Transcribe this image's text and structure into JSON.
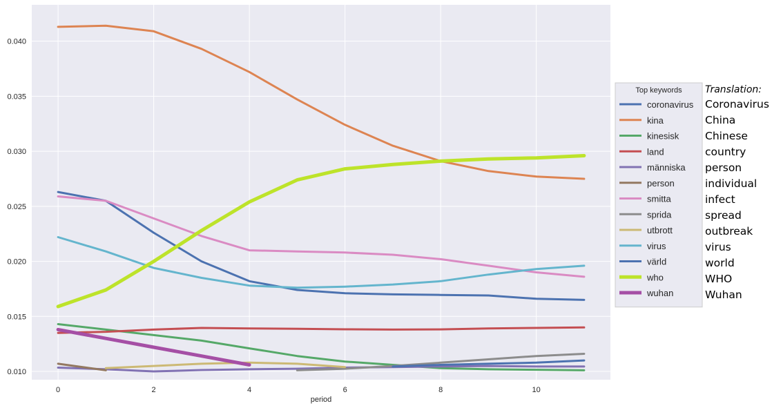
{
  "translation": {
    "title": "Translation:",
    "items": [
      "Coronavirus",
      "China",
      "Chinese",
      "country",
      "person",
      "individual",
      "infect",
      "spread",
      "outbreak",
      "virus",
      "world",
      "WHO",
      "Wuhan"
    ]
  },
  "chart_data": {
    "type": "line",
    "title": "",
    "xlabel": "period",
    "ylabel": "",
    "xlim": [
      -0.55,
      11.55
    ],
    "ylim": [
      0.00925,
      0.0433
    ],
    "xticks": [
      0,
      2,
      4,
      6,
      8,
      10
    ],
    "xtick_labels": [
      "0",
      "2",
      "4",
      "6",
      "8",
      "10"
    ],
    "yticks": [
      0.01,
      0.015,
      0.02,
      0.025,
      0.03,
      0.035,
      0.04
    ],
    "ytick_labels": [
      "0.010",
      "0.015",
      "0.020",
      "0.025",
      "0.030",
      "0.035",
      "0.040"
    ],
    "grid": true,
    "background": "#eaeaf2",
    "legend": {
      "title": "Top keywords",
      "placement": "outside-right"
    },
    "series": [
      {
        "name": "coronavirus",
        "color": "#4c72b0",
        "width": 3,
        "x": [
          0,
          1,
          2,
          3,
          4,
          5,
          6,
          7,
          8,
          9,
          10,
          11
        ],
        "y": [
          0.0263,
          0.0255,
          0.0226,
          0.02,
          0.0182,
          0.0174,
          0.0171,
          0.017,
          0.01695,
          0.0169,
          0.0166,
          0.0165
        ]
      },
      {
        "name": "kina",
        "color": "#dd8452",
        "width": 3,
        "x": [
          0,
          1,
          2,
          3,
          4,
          5,
          6,
          7,
          8,
          9,
          10,
          11
        ],
        "y": [
          0.0413,
          0.0414,
          0.0409,
          0.0393,
          0.0372,
          0.0347,
          0.0324,
          0.0305,
          0.0291,
          0.0282,
          0.0277,
          0.0275
        ]
      },
      {
        "name": "kinesisk",
        "color": "#55a868",
        "width": 3,
        "x": [
          0,
          1,
          2,
          3,
          4,
          5,
          6,
          7,
          8,
          9,
          10,
          11
        ],
        "y": [
          0.0143,
          0.0138,
          0.0133,
          0.0128,
          0.0121,
          0.0114,
          0.0109,
          0.0106,
          0.0103,
          0.0102,
          0.01015,
          0.0101
        ]
      },
      {
        "name": "land",
        "color": "#c44e52",
        "width": 3,
        "x": [
          0,
          1,
          2,
          3,
          4,
          5,
          6,
          7,
          8,
          9,
          10,
          11
        ],
        "y": [
          0.0135,
          0.0136,
          0.0138,
          0.01395,
          0.0139,
          0.01388,
          0.01383,
          0.0138,
          0.01382,
          0.0139,
          0.01395,
          0.014
        ]
      },
      {
        "name": "människa",
        "color": "#8172b3",
        "width": 3,
        "x": [
          0,
          1,
          2,
          3,
          4,
          5,
          6,
          7,
          8,
          9,
          10,
          11
        ],
        "y": [
          0.01035,
          0.0102,
          0.01,
          0.01013,
          0.0102,
          0.01025,
          0.01035,
          0.0104,
          0.01045,
          0.0105,
          0.01045,
          0.01045
        ]
      },
      {
        "name": "person",
        "color": "#937860",
        "width": 3,
        "x": [
          0,
          1
        ],
        "y": [
          0.0107,
          0.0101
        ]
      },
      {
        "name": "smitta",
        "color": "#da8bc3",
        "width": 3,
        "x": [
          0,
          1,
          2,
          3,
          4,
          5,
          6,
          7,
          8,
          9,
          10,
          11
        ],
        "y": [
          0.0259,
          0.0255,
          0.0239,
          0.0223,
          0.021,
          0.0209,
          0.0208,
          0.0206,
          0.0202,
          0.0196,
          0.019,
          0.0186
        ]
      },
      {
        "name": "sprida",
        "color": "#8c8c8c",
        "width": 3,
        "x": [
          5,
          6,
          7,
          8,
          9,
          10,
          11
        ],
        "y": [
          0.0101,
          0.01025,
          0.0105,
          0.0108,
          0.0111,
          0.0114,
          0.0116
        ]
      },
      {
        "name": "utbrott",
        "color": "#ccb974",
        "width": 3,
        "x": [
          1,
          2,
          3,
          4,
          5,
          6
        ],
        "y": [
          0.0103,
          0.0105,
          0.0107,
          0.0108,
          0.0107,
          0.0104
        ]
      },
      {
        "name": "virus",
        "color": "#64b5cd",
        "width": 3,
        "x": [
          0,
          1,
          2,
          3,
          4,
          5,
          6,
          7,
          8,
          9,
          10,
          11
        ],
        "y": [
          0.0222,
          0.0209,
          0.0194,
          0.0185,
          0.0178,
          0.0176,
          0.0177,
          0.0179,
          0.0182,
          0.0188,
          0.0193,
          0.0196
        ]
      },
      {
        "name": "värld",
        "color": "#4c72b0",
        "width": 3,
        "x": [
          7,
          8,
          9,
          10,
          11
        ],
        "y": [
          0.01045,
          0.0106,
          0.0107,
          0.0108,
          0.011
        ]
      },
      {
        "name": "who",
        "color": "#bde32a",
        "width": 5,
        "x": [
          0,
          1,
          2,
          3,
          4,
          5,
          6,
          7,
          8,
          9,
          10,
          11
        ],
        "y": [
          0.0159,
          0.0174,
          0.02,
          0.0228,
          0.0254,
          0.0274,
          0.0284,
          0.0288,
          0.0291,
          0.0293,
          0.0294,
          0.0296
        ]
      },
      {
        "name": "wuhan",
        "color": "#a54fa5",
        "width": 5,
        "x": [
          0,
          1,
          2,
          3,
          4
        ],
        "y": [
          0.0138,
          0.013,
          0.0122,
          0.0114,
          0.0106
        ]
      }
    ]
  }
}
